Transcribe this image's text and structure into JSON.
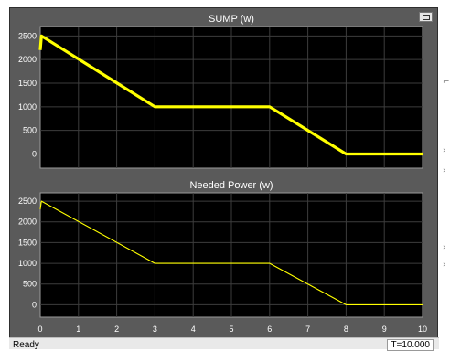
{
  "status": {
    "text": "Ready",
    "time": "T=10.000"
  },
  "colors": {
    "plot_bg": "#000000",
    "grid": "#3d3d3d",
    "frame": "#5a5a5a",
    "trace": "#ffff00",
    "text": "#ffffff"
  },
  "icons": {
    "restore": "restore-window-icon"
  },
  "chart_data": [
    {
      "type": "line",
      "title": "SUMP (w)",
      "x": [
        0,
        0.03,
        3,
        6,
        8,
        10
      ],
      "series": [
        {
          "values": [
            2200,
            2500,
            1000,
            1000,
            0,
            0
          ]
        }
      ],
      "xlim": [
        0,
        10
      ],
      "ylim": [
        -300,
        2700
      ],
      "yticks": [
        0,
        500,
        1000,
        1500,
        2000,
        2500
      ],
      "xticks": [
        0,
        1,
        2,
        3,
        4,
        5,
        6,
        7,
        8,
        9,
        10
      ],
      "grid": true,
      "style": "thick"
    },
    {
      "type": "line",
      "title": "Needed Power (w)",
      "x": [
        0,
        0.03,
        3,
        6,
        8,
        10
      ],
      "series": [
        {
          "values": [
            2300,
            2500,
            1000,
            1000,
            0,
            0
          ]
        }
      ],
      "xlim": [
        0,
        10
      ],
      "ylim": [
        -300,
        2700
      ],
      "yticks": [
        0,
        500,
        1000,
        1500,
        2000,
        2500
      ],
      "xticks": [
        0,
        1,
        2,
        3,
        4,
        5,
        6,
        7,
        8,
        9,
        10
      ],
      "grid": true,
      "style": "thin"
    }
  ]
}
